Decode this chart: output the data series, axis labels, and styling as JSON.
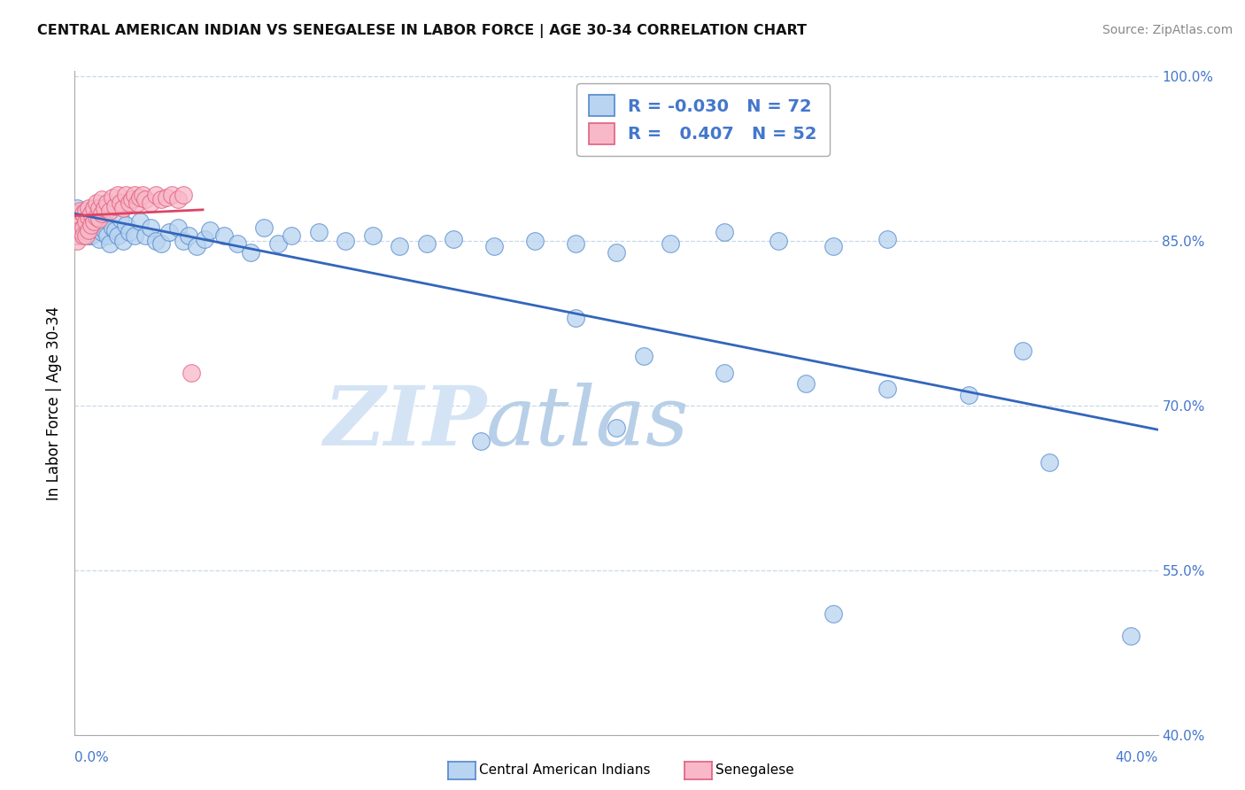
{
  "title": "CENTRAL AMERICAN INDIAN VS SENEGALESE IN LABOR FORCE | AGE 30-34 CORRELATION CHART",
  "source": "Source: ZipAtlas.com",
  "ylabel": "In Labor Force | Age 30-34",
  "watermark_left": "ZIP",
  "watermark_right": "atlas",
  "legend_blue_R": "-0.030",
  "legend_blue_N": "72",
  "legend_pink_R": "0.407",
  "legend_pink_N": "52",
  "blue_fill": "#b8d4f0",
  "blue_edge": "#5588cc",
  "pink_fill": "#f8b8c8",
  "pink_edge": "#e06080",
  "blue_line_color": "#3366bb",
  "pink_line_color": "#dd4466",
  "xmin": 0.0,
  "xmax": 0.4,
  "ymin": 0.4,
  "ymax": 1.005,
  "yticks": [
    1.0,
    0.85,
    0.7,
    0.55,
    0.4
  ],
  "ytick_labels": [
    "100.0%",
    "85.0%",
    "70.0%",
    "55.0%",
    "40.0%"
  ],
  "grid_color": "#c8d8e8",
  "bg_color": "#ffffff",
  "title_color": "#111111",
  "axis_label_color": "#4477cc",
  "blue_x": [
    0.001,
    0.001,
    0.002,
    0.002,
    0.003,
    0.003,
    0.004,
    0.005,
    0.005,
    0.006,
    0.006,
    0.007,
    0.008,
    0.009,
    0.01,
    0.01,
    0.011,
    0.012,
    0.013,
    0.014,
    0.015,
    0.016,
    0.017,
    0.018,
    0.019,
    0.02,
    0.022,
    0.024,
    0.026,
    0.028,
    0.03,
    0.032,
    0.035,
    0.038,
    0.04,
    0.042,
    0.045,
    0.048,
    0.05,
    0.055,
    0.06,
    0.065,
    0.07,
    0.075,
    0.08,
    0.09,
    0.1,
    0.11,
    0.12,
    0.13,
    0.14,
    0.155,
    0.17,
    0.185,
    0.2,
    0.22,
    0.24,
    0.26,
    0.28,
    0.3,
    0.185,
    0.21,
    0.24,
    0.27,
    0.3,
    0.33,
    0.36,
    0.39,
    0.15,
    0.2,
    0.28,
    0.35
  ],
  "blue_y": [
    0.855,
    0.88,
    0.875,
    0.865,
    0.858,
    0.87,
    0.862,
    0.855,
    0.87,
    0.862,
    0.855,
    0.865,
    0.87,
    0.852,
    0.858,
    0.87,
    0.86,
    0.855,
    0.848,
    0.862,
    0.86,
    0.855,
    0.87,
    0.85,
    0.865,
    0.858,
    0.855,
    0.868,
    0.855,
    0.862,
    0.85,
    0.848,
    0.858,
    0.862,
    0.85,
    0.855,
    0.845,
    0.852,
    0.86,
    0.855,
    0.848,
    0.84,
    0.862,
    0.848,
    0.855,
    0.858,
    0.85,
    0.855,
    0.845,
    0.848,
    0.852,
    0.845,
    0.85,
    0.848,
    0.84,
    0.848,
    0.858,
    0.85,
    0.845,
    0.852,
    0.78,
    0.745,
    0.73,
    0.72,
    0.715,
    0.71,
    0.648,
    0.49,
    0.668,
    0.68,
    0.51,
    0.75
  ],
  "pink_x": [
    0.0003,
    0.0005,
    0.0007,
    0.001,
    0.001,
    0.001,
    0.002,
    0.002,
    0.002,
    0.003,
    0.003,
    0.003,
    0.004,
    0.004,
    0.004,
    0.005,
    0.005,
    0.005,
    0.006,
    0.006,
    0.007,
    0.007,
    0.008,
    0.008,
    0.009,
    0.009,
    0.01,
    0.01,
    0.011,
    0.012,
    0.013,
    0.014,
    0.015,
    0.016,
    0.017,
    0.018,
    0.019,
    0.02,
    0.021,
    0.022,
    0.023,
    0.024,
    0.025,
    0.026,
    0.028,
    0.03,
    0.032,
    0.034,
    0.036,
    0.038,
    0.04,
    0.043
  ],
  "pink_y": [
    0.855,
    0.86,
    0.87,
    0.862,
    0.875,
    0.85,
    0.87,
    0.86,
    0.878,
    0.862,
    0.875,
    0.855,
    0.868,
    0.878,
    0.855,
    0.872,
    0.86,
    0.88,
    0.865,
    0.875,
    0.868,
    0.88,
    0.872,
    0.885,
    0.87,
    0.88,
    0.875,
    0.888,
    0.88,
    0.885,
    0.878,
    0.89,
    0.882,
    0.892,
    0.885,
    0.88,
    0.892,
    0.885,
    0.888,
    0.892,
    0.885,
    0.89,
    0.892,
    0.888,
    0.885,
    0.892,
    0.888,
    0.89,
    0.892,
    0.888,
    0.892,
    0.73
  ]
}
